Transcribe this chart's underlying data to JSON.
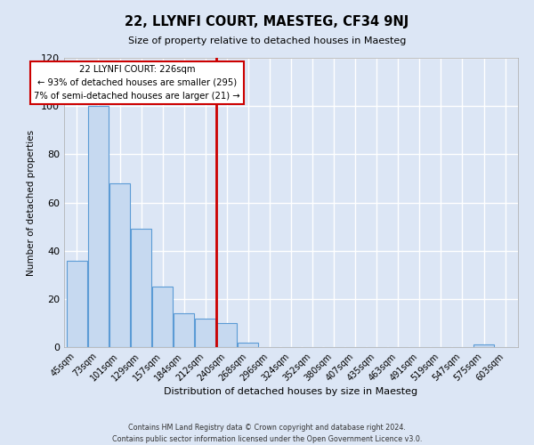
{
  "title": "22, LLYNFI COURT, MAESTEG, CF34 9NJ",
  "subtitle": "Size of property relative to detached houses in Maesteg",
  "xlabel": "Distribution of detached houses by size in Maesteg",
  "ylabel": "Number of detached properties",
  "footer_line1": "Contains HM Land Registry data © Crown copyright and database right 2024.",
  "footer_line2": "Contains public sector information licensed under the Open Government Licence v3.0.",
  "bar_labels": [
    "45sqm",
    "73sqm",
    "101sqm",
    "129sqm",
    "157sqm",
    "184sqm",
    "212sqm",
    "240sqm",
    "268sqm",
    "296sqm",
    "324sqm",
    "352sqm",
    "380sqm",
    "407sqm",
    "435sqm",
    "463sqm",
    "491sqm",
    "519sqm",
    "547sqm",
    "575sqm",
    "603sqm"
  ],
  "bar_values": [
    36,
    100,
    68,
    49,
    25,
    14,
    12,
    10,
    2,
    0,
    0,
    0,
    0,
    0,
    0,
    0,
    0,
    0,
    0,
    1,
    0
  ],
  "bar_color": "#c6d9f0",
  "bar_edge_color": "#5b9bd5",
  "ylim": [
    0,
    120
  ],
  "yticks": [
    0,
    20,
    40,
    60,
    80,
    100,
    120
  ],
  "vline_color": "#cc0000",
  "annotation_title": "22 LLYNFI COURT: 226sqm",
  "annotation_line1": "← 93% of detached houses are smaller (295)",
  "annotation_line2": "7% of semi-detached houses are larger (21) →",
  "annotation_box_color": "#ffffff",
  "annotation_box_edge": "#cc0000",
  "background_color": "#dce6f5",
  "grid_color": "#ffffff"
}
